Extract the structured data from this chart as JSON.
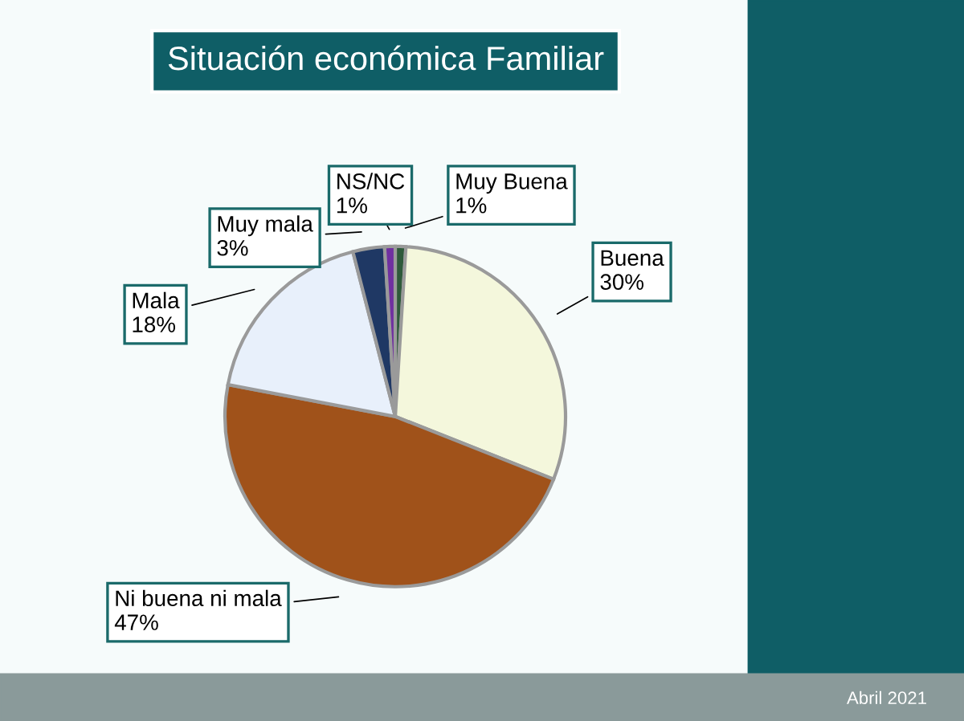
{
  "chart_data": {
    "type": "pie",
    "title": "Situación económica Familiar",
    "categories": [
      "Muy Buena",
      "Buena",
      "Ni buena ni mala",
      "Mala",
      "Muy mala",
      "NS/NC"
    ],
    "values": [
      1,
      30,
      47,
      18,
      3,
      1
    ],
    "colors": [
      "#2e5a3a",
      "#f4f7dc",
      "#a0521a",
      "#e8f0fb",
      "#1f3864",
      "#7030a0"
    ],
    "annotations": [
      "Abril 2021"
    ],
    "value_labels": [
      "1%",
      "30%",
      "47%",
      "18%",
      "3%",
      "1%"
    ],
    "legend": false
  }
}
